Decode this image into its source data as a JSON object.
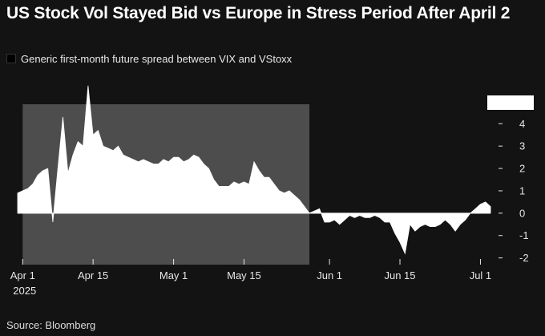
{
  "title": "US Stock Vol Stayed Bid vs Europe in Stress Period After April 2",
  "source": "Source: Bloomberg",
  "legend": [
    {
      "label": "Generic first-month future spread between VIX and VStoxx",
      "color": "#000000"
    }
  ],
  "colors": {
    "background": "#131313",
    "area": "#ffffff",
    "highlight": "#4d4d4d",
    "text": "#ffffff"
  },
  "chart_data": {
    "type": "area",
    "title": "US Stock Vol Stayed Bid vs Europe in Stress Period After April 2",
    "xlabel": "",
    "ylabel": "",
    "x_range": [
      "2025-03-31",
      "2025-07-03"
    ],
    "ylim": [
      -2.3,
      5.3
    ],
    "y_ticks": [
      4,
      3,
      2,
      1,
      0,
      -1,
      -2
    ],
    "y_tick_labels": [
      "4",
      "3",
      "2",
      "1",
      "0",
      "-1",
      "-2"
    ],
    "x_ticks": [
      {
        "date": "2025-04-01",
        "label": "Apr 1",
        "sublabel": "2025"
      },
      {
        "date": "2025-04-15",
        "label": "Apr 15",
        "sublabel": ""
      },
      {
        "date": "2025-05-01",
        "label": "May 1",
        "sublabel": ""
      },
      {
        "date": "2025-05-15",
        "label": "May 15",
        "sublabel": ""
      },
      {
        "date": "2025-06-01",
        "label": "Jun 1",
        "sublabel": ""
      },
      {
        "date": "2025-06-15",
        "label": "Jun 15",
        "sublabel": ""
      },
      {
        "date": "2025-07-01",
        "label": "Jul 1",
        "sublabel": ""
      }
    ],
    "shaded_region": {
      "start": "2025-04-01",
      "end": "2025-05-28"
    },
    "series": [
      {
        "x": [
          "2025-03-31",
          "2025-04-01",
          "2025-04-02",
          "2025-04-03",
          "2025-04-04",
          "2025-04-05",
          "2025-04-06",
          "2025-04-07",
          "2025-04-08",
          "2025-04-09",
          "2025-04-10",
          "2025-04-11",
          "2025-04-12",
          "2025-04-13",
          "2025-04-14",
          "2025-04-15",
          "2025-04-16",
          "2025-04-17",
          "2025-04-18",
          "2025-04-19",
          "2025-04-20",
          "2025-04-21",
          "2025-04-22",
          "2025-04-23",
          "2025-04-24",
          "2025-04-25",
          "2025-04-26",
          "2025-04-27",
          "2025-04-28",
          "2025-04-29",
          "2025-04-30",
          "2025-05-01",
          "2025-05-02",
          "2025-05-03",
          "2025-05-04",
          "2025-05-05",
          "2025-05-06",
          "2025-05-07",
          "2025-05-08",
          "2025-05-09",
          "2025-05-10",
          "2025-05-11",
          "2025-05-12",
          "2025-05-13",
          "2025-05-14",
          "2025-05-15",
          "2025-05-16",
          "2025-05-17",
          "2025-05-18",
          "2025-05-19",
          "2025-05-20",
          "2025-05-21",
          "2025-05-22",
          "2025-05-23",
          "2025-05-24",
          "2025-05-25",
          "2025-05-26",
          "2025-05-27",
          "2025-05-28",
          "2025-05-29",
          "2025-05-30",
          "2025-05-31",
          "2025-06-01",
          "2025-06-02",
          "2025-06-03",
          "2025-06-04",
          "2025-06-05",
          "2025-06-06",
          "2025-06-07",
          "2025-06-08",
          "2025-06-09",
          "2025-06-10",
          "2025-06-11",
          "2025-06-12",
          "2025-06-13",
          "2025-06-14",
          "2025-06-15",
          "2025-06-16",
          "2025-06-17",
          "2025-06-18",
          "2025-06-19",
          "2025-06-20",
          "2025-06-21",
          "2025-06-22",
          "2025-06-23",
          "2025-06-24",
          "2025-06-25",
          "2025-06-26",
          "2025-06-27",
          "2025-06-28",
          "2025-06-29",
          "2025-06-30",
          "2025-07-01",
          "2025-07-02",
          "2025-07-03"
        ],
        "values": [
          0.9,
          1.0,
          1.1,
          1.3,
          1.7,
          1.9,
          2.0,
          -0.4,
          2.0,
          4.3,
          1.8,
          2.6,
          3.2,
          3.0,
          5.7,
          3.5,
          3.7,
          3.0,
          2.9,
          2.8,
          3.0,
          2.6,
          2.5,
          2.4,
          2.3,
          2.4,
          2.3,
          2.2,
          2.2,
          2.4,
          2.3,
          2.5,
          2.5,
          2.3,
          2.4,
          2.6,
          2.5,
          2.2,
          2.0,
          1.5,
          1.2,
          1.2,
          1.2,
          1.4,
          1.3,
          1.4,
          1.3,
          2.3,
          1.9,
          1.6,
          1.6,
          1.3,
          1.0,
          0.9,
          1.0,
          0.8,
          0.6,
          0.3,
          0.0,
          0.1,
          0.2,
          -0.4,
          -0.4,
          -0.3,
          -0.5,
          -0.3,
          -0.1,
          -0.2,
          -0.1,
          -0.2,
          -0.2,
          -0.1,
          -0.2,
          -0.4,
          -0.4,
          -0.9,
          -1.3,
          -1.8,
          -0.5,
          -0.8,
          -0.6,
          -0.5,
          -0.6,
          -0.6,
          -0.5,
          -0.3,
          -0.5,
          -0.8,
          -0.5,
          -0.3,
          0.0,
          0.2,
          0.4,
          0.5,
          0.3
        ]
      }
    ]
  }
}
